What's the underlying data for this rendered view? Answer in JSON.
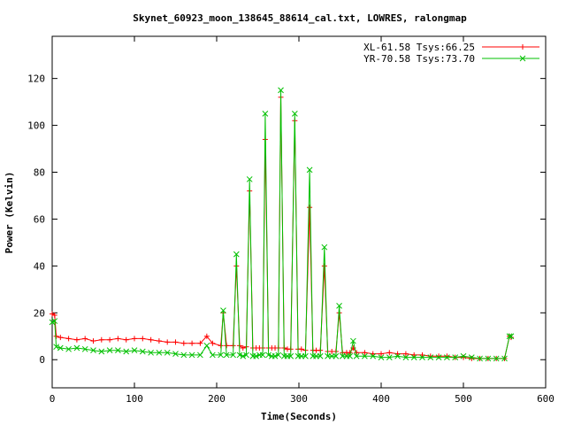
{
  "chart_data": {
    "type": "line",
    "title": "Skynet_60923_moon_138645_88614_cal.txt, LOWRES, ralongmap",
    "xlabel": "Time(Seconds)",
    "ylabel": "Power (Kelvin)",
    "xlim": [
      0,
      600
    ],
    "ylim": [
      -12,
      138
    ],
    "xticks": [
      0,
      100,
      200,
      300,
      400,
      500,
      600
    ],
    "yticks": [
      0,
      20,
      40,
      60,
      80,
      100,
      120
    ],
    "grid": false,
    "legend_position": "top-right",
    "series": [
      {
        "name": "XL-61.58 Tsys:66.25",
        "color": "#ff0000",
        "marker": "plus",
        "points": [
          [
            0,
            19.5
          ],
          [
            3,
            19
          ],
          [
            5,
            10
          ],
          [
            10,
            9.5
          ],
          [
            20,
            9
          ],
          [
            30,
            8.5
          ],
          [
            40,
            9
          ],
          [
            50,
            8
          ],
          [
            60,
            8.5
          ],
          [
            70,
            8.5
          ],
          [
            80,
            9
          ],
          [
            90,
            8.5
          ],
          [
            100,
            9
          ],
          [
            110,
            9
          ],
          [
            120,
            8.5
          ],
          [
            130,
            8
          ],
          [
            140,
            7.5
          ],
          [
            150,
            7.5
          ],
          [
            160,
            7
          ],
          [
            170,
            7
          ],
          [
            180,
            7
          ],
          [
            188,
            10
          ],
          [
            195,
            7
          ],
          [
            205,
            6
          ],
          [
            208,
            20
          ],
          [
            212,
            6
          ],
          [
            220,
            6
          ],
          [
            224,
            40
          ],
          [
            228,
            6
          ],
          [
            232,
            5
          ],
          [
            236,
            5.5
          ],
          [
            240,
            72
          ],
          [
            244,
            5
          ],
          [
            248,
            5
          ],
          [
            252,
            5
          ],
          [
            256,
            5
          ],
          [
            259,
            94
          ],
          [
            263,
            5
          ],
          [
            267,
            5
          ],
          [
            271,
            5
          ],
          [
            275,
            5
          ],
          [
            278,
            112
          ],
          [
            282,
            5
          ],
          [
            286,
            4.5
          ],
          [
            290,
            4.5
          ],
          [
            295,
            102
          ],
          [
            299,
            4.5
          ],
          [
            303,
            4.5
          ],
          [
            308,
            4
          ],
          [
            313,
            65
          ],
          [
            317,
            4
          ],
          [
            321,
            4
          ],
          [
            326,
            4
          ],
          [
            331,
            40
          ],
          [
            335,
            3.5
          ],
          [
            340,
            3.5
          ],
          [
            345,
            3.5
          ],
          [
            349,
            20
          ],
          [
            353,
            3
          ],
          [
            358,
            3
          ],
          [
            362,
            3
          ],
          [
            366,
            5
          ],
          [
            370,
            3
          ],
          [
            380,
            3
          ],
          [
            390,
            2.5
          ],
          [
            400,
            2.5
          ],
          [
            410,
            3
          ],
          [
            420,
            2.5
          ],
          [
            430,
            2.5
          ],
          [
            440,
            2
          ],
          [
            450,
            2
          ],
          [
            460,
            1.5
          ],
          [
            470,
            1.5
          ],
          [
            480,
            1.5
          ],
          [
            490,
            1
          ],
          [
            500,
            1
          ],
          [
            510,
            0.5
          ],
          [
            520,
            0.5
          ],
          [
            530,
            0.5
          ],
          [
            540,
            0.5
          ],
          [
            550,
            0.5
          ],
          [
            556,
            10
          ],
          [
            558,
            9.5
          ]
        ]
      },
      {
        "name": "YR-70.58 Tsys:73.70",
        "color": "#00c000",
        "marker": "cross",
        "points": [
          [
            0,
            16
          ],
          [
            3,
            16.5
          ],
          [
            5,
            5.5
          ],
          [
            10,
            5
          ],
          [
            20,
            4.5
          ],
          [
            30,
            5
          ],
          [
            40,
            4.5
          ],
          [
            50,
            4
          ],
          [
            60,
            3.5
          ],
          [
            70,
            4
          ],
          [
            80,
            4
          ],
          [
            90,
            3.5
          ],
          [
            100,
            4
          ],
          [
            110,
            3.5
          ],
          [
            120,
            3
          ],
          [
            130,
            3
          ],
          [
            140,
            3
          ],
          [
            150,
            2.5
          ],
          [
            160,
            2
          ],
          [
            170,
            2
          ],
          [
            180,
            2
          ],
          [
            188,
            6
          ],
          [
            195,
            2
          ],
          [
            205,
            2
          ],
          [
            208,
            21
          ],
          [
            212,
            2
          ],
          [
            220,
            2
          ],
          [
            224,
            45
          ],
          [
            228,
            2
          ],
          [
            232,
            1.5
          ],
          [
            236,
            2
          ],
          [
            240,
            77
          ],
          [
            244,
            1.5
          ],
          [
            248,
            1.5
          ],
          [
            252,
            2
          ],
          [
            256,
            2
          ],
          [
            259,
            105
          ],
          [
            263,
            2
          ],
          [
            267,
            1.5
          ],
          [
            271,
            1.5
          ],
          [
            275,
            2
          ],
          [
            278,
            115
          ],
          [
            282,
            1.5
          ],
          [
            286,
            1.5
          ],
          [
            290,
            1.5
          ],
          [
            295,
            105
          ],
          [
            299,
            1.5
          ],
          [
            303,
            1.5
          ],
          [
            308,
            1.5
          ],
          [
            313,
            81
          ],
          [
            317,
            1.5
          ],
          [
            321,
            1.5
          ],
          [
            326,
            1.5
          ],
          [
            331,
            48
          ],
          [
            335,
            1.5
          ],
          [
            340,
            1.5
          ],
          [
            345,
            1.5
          ],
          [
            349,
            23
          ],
          [
            353,
            1.5
          ],
          [
            358,
            1.5
          ],
          [
            362,
            1.5
          ],
          [
            366,
            8
          ],
          [
            370,
            1.5
          ],
          [
            380,
            1.5
          ],
          [
            390,
            1.5
          ],
          [
            400,
            1
          ],
          [
            410,
            1
          ],
          [
            420,
            1.5
          ],
          [
            430,
            1
          ],
          [
            440,
            1
          ],
          [
            450,
            1
          ],
          [
            460,
            1
          ],
          [
            470,
            1
          ],
          [
            480,
            1
          ],
          [
            490,
            1
          ],
          [
            500,
            1.5
          ],
          [
            510,
            1
          ],
          [
            520,
            0.5
          ],
          [
            530,
            0.5
          ],
          [
            540,
            0.5
          ],
          [
            550,
            0.5
          ],
          [
            556,
            10
          ],
          [
            558,
            10
          ]
        ]
      }
    ]
  }
}
